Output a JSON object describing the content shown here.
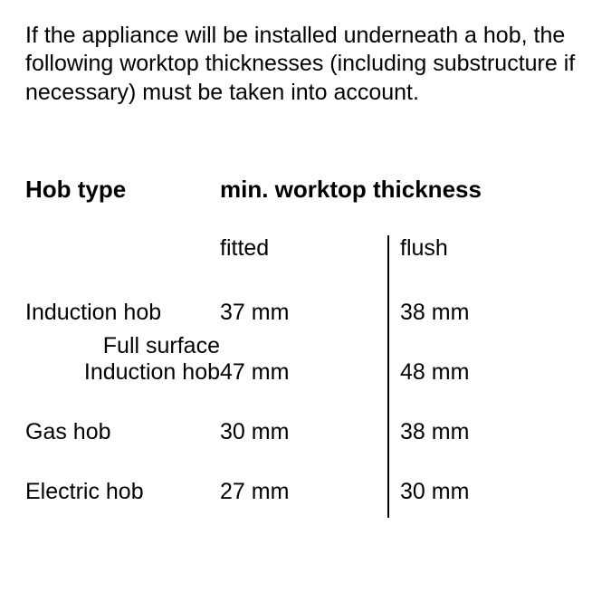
{
  "intro": "If the appliance will be installed underneath a hob, the following worktop thicknesses (including substructure if necessary) must be taken into account.",
  "table": {
    "columns": {
      "hob_type_header": "Hob type",
      "thickness_header": "min. worktop thickness",
      "fitted_label": "fitted",
      "flush_label": "flush"
    },
    "rows": [
      {
        "label": "Induction hob",
        "label2": "",
        "fitted": "37 mm",
        "flush": "38 mm"
      },
      {
        "label": "Full surface",
        "label2": "Induction hob",
        "fitted": "47 mm",
        "flush": "48 mm"
      },
      {
        "label": "Gas hob",
        "label2": "",
        "fitted": "30 mm",
        "flush": "38 mm"
      },
      {
        "label": "Electric hob",
        "label2": "",
        "fitted": "27 mm",
        "flush": "30 mm"
      }
    ],
    "text_color": "#000000",
    "background_color": "#ffffff",
    "border_color": "#000000"
  }
}
